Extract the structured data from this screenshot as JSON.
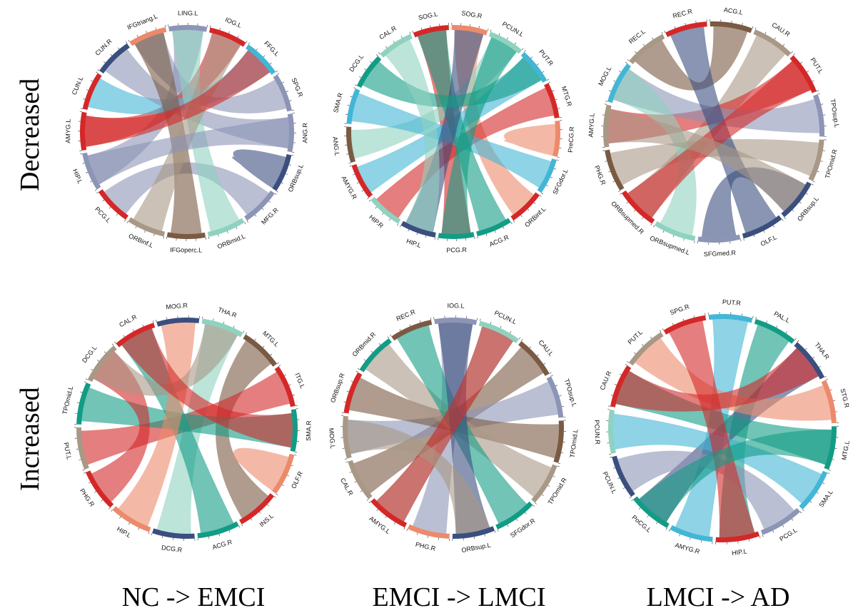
{
  "row_labels": {
    "top": "Decreased",
    "bottom": "Increased"
  },
  "column_labels": [
    "NC -> EMCI",
    "EMCI -> LMCI",
    "LMCI -> AD"
  ],
  "colors": {
    "navy": "#3a4f7f",
    "red": "#d42828",
    "salmon": "#ec8a6b",
    "teal": "#139c85",
    "brown": "#7a5a43",
    "tan": "#a89886",
    "lightblue": "#43b6d6",
    "lilac": "#8c95b6",
    "mint": "#8fd2bf"
  },
  "diagrams": [
    {
      "id": "nc-emci-decreased",
      "segments": [
        {
          "label": "LING.L",
          "color": "lilac"
        },
        {
          "label": "IOG.L",
          "color": "red"
        },
        {
          "label": "FFG.L",
          "color": "lightblue"
        },
        {
          "label": "SPG.R",
          "color": "lilac"
        },
        {
          "label": "ANG.R",
          "color": "lilac"
        },
        {
          "label": "ORBsup.L",
          "color": "navy"
        },
        {
          "label": "MFG.R",
          "color": "lilac"
        },
        {
          "label": "ORBmid.L",
          "color": "mint"
        },
        {
          "label": "IFGoperc.L",
          "color": "brown"
        },
        {
          "label": "ORBinf.L",
          "color": "tan"
        },
        {
          "label": "PCG.L",
          "color": "red"
        },
        {
          "label": "HIP.L",
          "color": "lilac"
        },
        {
          "label": "AMYG.L",
          "color": "red"
        },
        {
          "label": "CUN.L",
          "color": "red"
        },
        {
          "label": "CUN.R",
          "color": "navy"
        },
        {
          "label": "IFGtriang.L",
          "color": "salmon"
        }
      ]
    },
    {
      "id": "emci-lmci-decreased",
      "segments": [
        {
          "label": "SOG.L",
          "color": "red"
        },
        {
          "label": "SOG.R",
          "color": "salmon"
        },
        {
          "label": "PCUN.L",
          "color": "mint"
        },
        {
          "label": "PUT.R",
          "color": "lightblue"
        },
        {
          "label": "MTG.R",
          "color": "red"
        },
        {
          "label": "PreCG.R",
          "color": "salmon"
        },
        {
          "label": "SFGdor.L",
          "color": "lightblue"
        },
        {
          "label": "ORBinf.L",
          "color": "red"
        },
        {
          "label": "ACG.R",
          "color": "teal"
        },
        {
          "label": "PCG.R",
          "color": "teal"
        },
        {
          "label": "HIP.L",
          "color": "navy"
        },
        {
          "label": "HIP.R",
          "color": "mint"
        },
        {
          "label": "AMYG.R",
          "color": "red"
        },
        {
          "label": "ANG.L",
          "color": "brown"
        },
        {
          "label": "SMA.R",
          "color": "lightblue"
        },
        {
          "label": "DCG.L",
          "color": "teal"
        },
        {
          "label": "CAL.R",
          "color": "mint"
        }
      ]
    },
    {
      "id": "lmci-ad-decreased",
      "segments": [
        {
          "label": "ACG.L",
          "color": "brown"
        },
        {
          "label": "CAU.R",
          "color": "tan"
        },
        {
          "label": "PUT.L",
          "color": "red"
        },
        {
          "label": "TPOsup.L",
          "color": "lilac"
        },
        {
          "label": "TPOmid.R",
          "color": "tan"
        },
        {
          "label": "ORBsup.L",
          "color": "navy"
        },
        {
          "label": "OLF.L",
          "color": "navy"
        },
        {
          "label": "SFGmed.R",
          "color": "lilac"
        },
        {
          "label": "ORBsupmed.L",
          "color": "mint"
        },
        {
          "label": "ORBsupmed.R",
          "color": "red"
        },
        {
          "label": "PHG.R",
          "color": "brown"
        },
        {
          "label": "AMYG.L",
          "color": "tan"
        },
        {
          "label": "MOG.L",
          "color": "lightblue"
        },
        {
          "label": "REC.L",
          "color": "tan"
        },
        {
          "label": "REC.R",
          "color": "red"
        }
      ]
    },
    {
      "id": "nc-emci-increased",
      "segments": [
        {
          "label": "THA.R",
          "color": "mint"
        },
        {
          "label": "MTG.L",
          "color": "brown"
        },
        {
          "label": "ITG.L",
          "color": "red"
        },
        {
          "label": "SMA.R",
          "color": "teal"
        },
        {
          "label": "OLF.R",
          "color": "salmon"
        },
        {
          "label": "INS.L",
          "color": "red"
        },
        {
          "label": "ACG.R",
          "color": "teal"
        },
        {
          "label": "DCG.R",
          "color": "navy"
        },
        {
          "label": "HIP.L",
          "color": "salmon"
        },
        {
          "label": "PHG.R",
          "color": "red"
        },
        {
          "label": "PUT.L",
          "color": "tan"
        },
        {
          "label": "TPOmid.L",
          "color": "teal"
        },
        {
          "label": "DCG.L",
          "color": "tan"
        },
        {
          "label": "CAL.R",
          "color": "red"
        },
        {
          "label": "MOG.R",
          "color": "navy"
        }
      ]
    },
    {
      "id": "emci-lmci-increased",
      "segments": [
        {
          "label": "IOG.L",
          "color": "lilac"
        },
        {
          "label": "PCUN.L",
          "color": "mint"
        },
        {
          "label": "CAU.L",
          "color": "brown"
        },
        {
          "label": "TPOsup.L",
          "color": "lilac"
        },
        {
          "label": "TPOmid.L",
          "color": "brown"
        },
        {
          "label": "TPOmid.R",
          "color": "tan"
        },
        {
          "label": "SFGdor.R",
          "color": "teal"
        },
        {
          "label": "ORBsup.L",
          "color": "navy"
        },
        {
          "label": "PHG.R",
          "color": "salmon"
        },
        {
          "label": "AMYG.L",
          "color": "red"
        },
        {
          "label": "CAL.R",
          "color": "tan"
        },
        {
          "label": "MOG.L",
          "color": "tan"
        },
        {
          "label": "ORBsup.R",
          "color": "red"
        },
        {
          "label": "ORBmid.R",
          "color": "teal"
        },
        {
          "label": "REC.R",
          "color": "brown"
        }
      ]
    },
    {
      "id": "lmci-ad-increased",
      "segments": [
        {
          "label": "PUT.R",
          "color": "lightblue"
        },
        {
          "label": "PAL.L",
          "color": "teal"
        },
        {
          "label": "THA.R",
          "color": "navy"
        },
        {
          "label": "STG.R",
          "color": "salmon"
        },
        {
          "label": "MTG.L",
          "color": "teal"
        },
        {
          "label": "SMA.L",
          "color": "lightblue"
        },
        {
          "label": "PCG.L",
          "color": "lilac"
        },
        {
          "label": "HIP.L",
          "color": "red"
        },
        {
          "label": "AMYG.R",
          "color": "lightblue"
        },
        {
          "label": "PoCG.L",
          "color": "teal"
        },
        {
          "label": "PCUN.L",
          "color": "navy"
        },
        {
          "label": "PCUN.R",
          "color": "mint"
        },
        {
          "label": "CAU.R",
          "color": "red"
        },
        {
          "label": "PUT.L",
          "color": "tan"
        },
        {
          "label": "SPG.R",
          "color": "red"
        }
      ]
    }
  ]
}
